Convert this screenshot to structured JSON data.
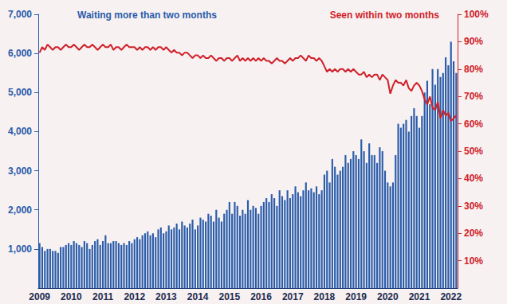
{
  "chart_data": {
    "type": "bar",
    "categories": [
      "2009",
      null,
      null,
      null,
      null,
      null,
      null,
      null,
      null,
      null,
      null,
      null,
      "2010",
      null,
      null,
      null,
      null,
      null,
      null,
      null,
      null,
      null,
      null,
      null,
      "2011",
      null,
      null,
      null,
      null,
      null,
      null,
      null,
      null,
      null,
      null,
      null,
      "2012",
      null,
      null,
      null,
      null,
      null,
      null,
      null,
      null,
      null,
      null,
      null,
      "2013",
      null,
      null,
      null,
      null,
      null,
      null,
      null,
      null,
      null,
      null,
      null,
      "2014",
      null,
      null,
      null,
      null,
      null,
      null,
      null,
      null,
      null,
      null,
      null,
      "2015",
      null,
      null,
      null,
      null,
      null,
      null,
      null,
      null,
      null,
      null,
      null,
      "2016",
      null,
      null,
      null,
      null,
      null,
      null,
      null,
      null,
      null,
      null,
      null,
      "2017",
      null,
      null,
      null,
      null,
      null,
      null,
      null,
      null,
      null,
      null,
      null,
      "2018",
      null,
      null,
      null,
      null,
      null,
      null,
      null,
      null,
      null,
      null,
      null,
      "2019",
      null,
      null,
      null,
      null,
      null,
      null,
      null,
      null,
      null,
      null,
      null,
      "2020",
      null,
      null,
      null,
      null,
      null,
      null,
      null,
      null,
      null,
      null,
      null,
      "2021",
      null,
      null,
      null,
      null,
      null,
      null,
      null,
      null,
      null,
      null,
      null,
      "2022",
      null,
      null
    ],
    "series": [
      {
        "name": "Waiting more than two months",
        "type": "bar",
        "color": "#2a5caa",
        "values": [
          1150,
          1050,
          950,
          1000,
          1000,
          950,
          950,
          900,
          1050,
          1050,
          1100,
          1150,
          1100,
          1200,
          1150,
          1100,
          1050,
          1200,
          1150,
          1000,
          1100,
          1200,
          1250,
          1100,
          1200,
          1350,
          1150,
          1150,
          1200,
          1200,
          1150,
          1100,
          1150,
          1100,
          1200,
          1150,
          1250,
          1300,
          1250,
          1350,
          1400,
          1450,
          1350,
          1400,
          1300,
          1500,
          1550,
          1400,
          1450,
          1600,
          1500,
          1550,
          1650,
          1500,
          1700,
          1600,
          1550,
          1650,
          1750,
          1500,
          1600,
          1800,
          1750,
          1700,
          1900,
          1850,
          1700,
          2000,
          1800,
          1700,
          1900,
          2000,
          2200,
          1900,
          2200,
          2100,
          1850,
          2000,
          1900,
          2250,
          2000,
          2100,
          2050,
          1900,
          2100,
          2200,
          2300,
          2200,
          2400,
          2300,
          2100,
          2500,
          2350,
          2250,
          2500,
          2300,
          2400,
          2600,
          2450,
          2350,
          2500,
          2700,
          2500,
          2550,
          2450,
          2600,
          2400,
          2500,
          2900,
          3000,
          2700,
          3300,
          3100,
          2900,
          3000,
          3100,
          3400,
          3200,
          3300,
          3500,
          3400,
          3300,
          3800,
          3500,
          3200,
          3700,
          3400,
          3400,
          3200,
          3600,
          3500,
          3000,
          2700,
          2600,
          2700,
          3400,
          4200,
          4100,
          4200,
          4300,
          4000,
          4400,
          4600,
          4400,
          4100,
          4400,
          5000,
          5300,
          4700,
          5600,
          5200,
          5600,
          5400,
          5500,
          5900,
          5700,
          6300,
          5800,
          5500
        ]
      },
      {
        "name": "Seen within two months",
        "type": "line",
        "color": "#d0212a",
        "axis": "y2",
        "values": [
          86,
          88,
          87,
          89,
          88,
          87,
          88,
          88,
          87,
          88,
          89,
          88,
          88,
          89,
          88,
          87,
          88,
          89,
          88,
          88,
          89,
          88,
          87,
          88,
          89,
          88,
          88,
          89,
          87,
          88,
          88,
          87,
          88,
          89,
          88,
          88,
          88,
          87,
          88,
          87,
          88,
          88,
          87,
          88,
          87,
          88,
          88,
          87,
          88,
          87,
          86,
          87,
          86,
          86,
          85,
          86,
          86,
          85,
          84,
          85,
          85,
          84,
          85,
          84,
          84,
          85,
          84,
          83,
          84,
          84,
          83,
          84,
          84,
          83,
          84,
          85,
          83,
          84,
          83,
          84,
          83,
          84,
          83,
          84,
          83,
          84,
          83,
          83,
          82,
          83,
          84,
          83,
          83,
          82,
          83,
          84,
          83,
          84,
          84,
          85,
          84,
          83,
          85,
          84,
          84,
          83,
          84,
          83,
          81,
          79,
          80,
          79,
          80,
          79,
          80,
          80,
          79,
          80,
          79,
          80,
          79,
          78,
          78,
          79,
          77,
          78,
          77,
          78,
          78,
          76,
          78,
          77,
          76,
          71,
          74,
          76,
          75,
          75,
          74,
          76,
          73,
          72,
          74,
          75,
          74,
          72,
          69,
          67,
          70,
          66,
          65,
          68,
          62,
          65,
          63,
          64,
          61,
          62,
          63
        ]
      }
    ],
    "ylim": [
      0,
      7000
    ],
    "yticks": [
      {
        "value": 1000,
        "label": "1,000"
      },
      {
        "value": 2000,
        "label": "2,000"
      },
      {
        "value": 3000,
        "label": "3,000"
      },
      {
        "value": 4000,
        "label": "4,000"
      },
      {
        "value": 5000,
        "label": "5,000"
      },
      {
        "value": 6000,
        "label": "6,000"
      },
      {
        "value": 7000,
        "label": "7,000"
      }
    ],
    "y2lim": [
      0,
      100
    ],
    "y2ticks": [
      {
        "value": 10,
        "label": "10%"
      },
      {
        "value": 20,
        "label": "20%"
      },
      {
        "value": 30,
        "label": "30%"
      },
      {
        "value": 40,
        "label": "40%"
      },
      {
        "value": 50,
        "label": "50%"
      },
      {
        "value": 60,
        "label": "60%"
      },
      {
        "value": 70,
        "label": "70%"
      },
      {
        "value": 80,
        "label": "80%"
      },
      {
        "value": 90,
        "label": "90%"
      },
      {
        "value": 100,
        "label": "100%"
      }
    ],
    "grid": false
  }
}
